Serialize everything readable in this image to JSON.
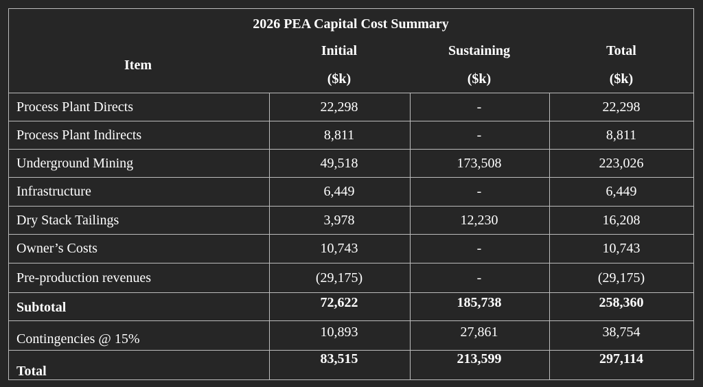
{
  "header": {
    "title": "2026 PEA Capital Cost Summary"
  },
  "table": {
    "columns": [
      {
        "name": "Item"
      },
      {
        "name": "Initial",
        "unit": "($k)"
      },
      {
        "name": "Sustaining",
        "unit": "($k)"
      },
      {
        "name": "Total",
        "unit": "($k)"
      }
    ],
    "rows": [
      [
        "Process Plant Directs",
        "22,298",
        "-",
        "22,298"
      ],
      [
        "Process Plant Indirects",
        "8,811",
        "-",
        "8,811"
      ],
      [
        "Underground Mining",
        "49,518",
        "173,508",
        "223,026"
      ],
      [
        "Infrastructure",
        "6,449",
        "-",
        "6,449"
      ],
      [
        "Dry Stack Tailings",
        "3,978",
        "12,230",
        "16,208"
      ],
      [
        "Owner’s Costs",
        "10,743",
        "-",
        "10,743"
      ],
      [
        "Pre-production revenues",
        "(29,175)",
        "-",
        "(29,175)"
      ],
      [
        "Subtotal",
        "72,622",
        "185,738",
        "258,360"
      ],
      [
        "Contingencies @ 15%",
        "10,893",
        "27,861",
        "38,754"
      ],
      [
        "Total",
        "83,515",
        "213,599",
        "297,114"
      ]
    ]
  }
}
